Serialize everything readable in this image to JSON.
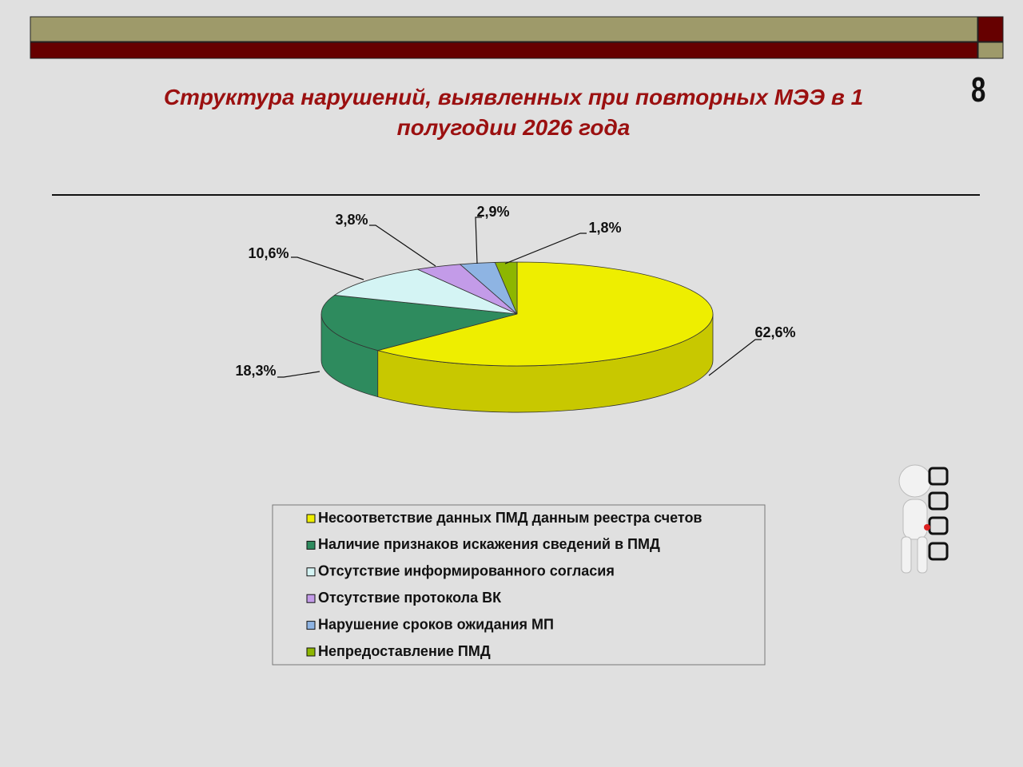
{
  "slide_number": "8",
  "chart_data": {
    "type": "pie",
    "title": "Структура нарушений, выявленных при повторных МЭЭ в 1 полугодии 2026 года",
    "categories": [
      "Несоответствие данных ПМД данным реестра счетов",
      "Наличие признаков искажения сведений в ПМД",
      "Отсутствие информированного согласия",
      "Отсутствие протокола ВК",
      "Нарушение сроков ожидания МП",
      "Непредоставление ПМД"
    ],
    "values": [
      62.6,
      18.3,
      10.6,
      3.8,
      2.9,
      1.8
    ],
    "value_labels": [
      "62,6%",
      "18,3%",
      "10,6%",
      "3,8%",
      "2,9%",
      "1,8%"
    ],
    "colors": [
      "#eeee00",
      "#2e8b5e",
      "#d4f4f4",
      "#c39be8",
      "#8eb4e3",
      "#8db600"
    ],
    "legend": "bottom"
  }
}
